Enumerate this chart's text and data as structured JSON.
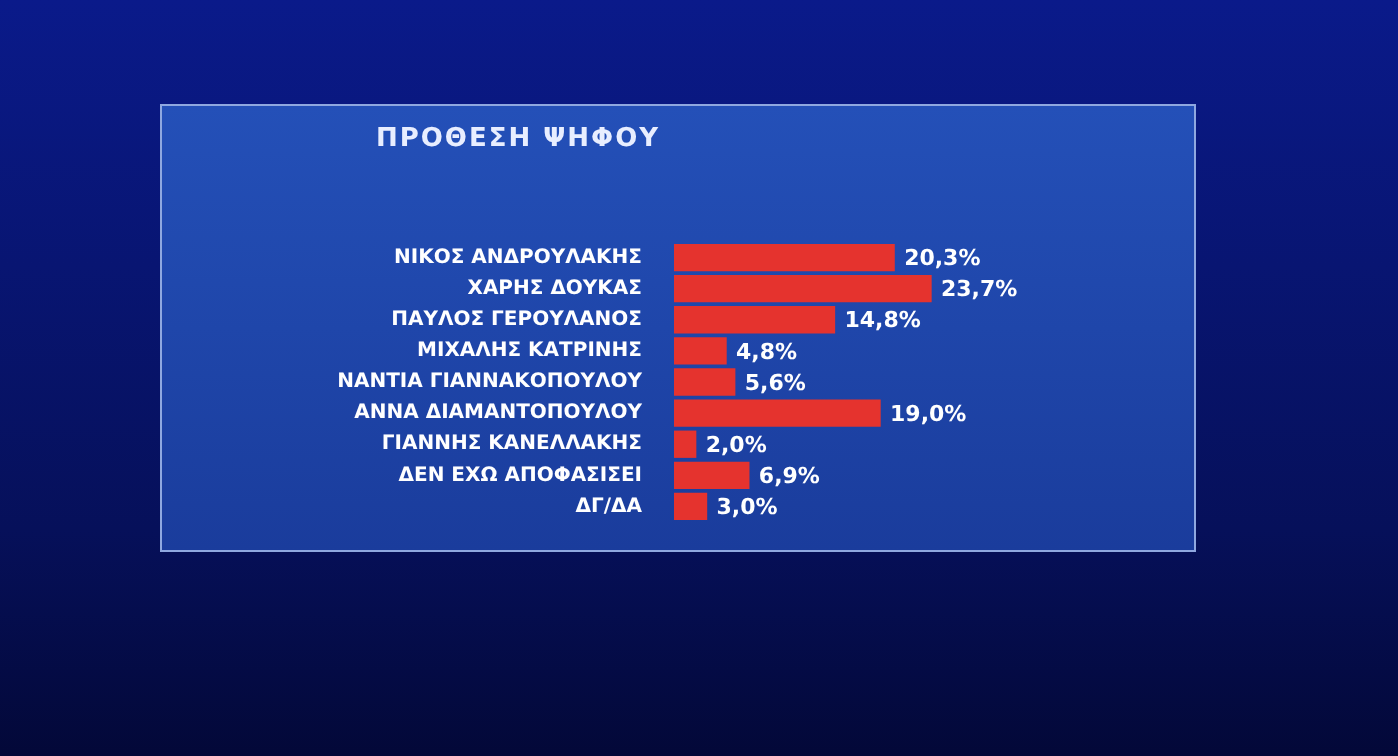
{
  "chart_data": {
    "type": "bar",
    "orientation": "horizontal",
    "title": "ΠΡΟΘΕΣΗ ΨΗΦΟΥ",
    "categories": [
      "ΝΙΚΟΣ ΑΝΔΡΟΥΛΑΚΗΣ",
      "ΧΑΡΗΣ ΔΟΥΚΑΣ",
      "ΠΑΥΛΟΣ ΓΕΡΟΥΛΑΝΟΣ",
      "ΜΙΧΑΛΗΣ ΚΑΤΡΙΝΗΣ",
      "ΝΑΝΤΙΑ ΓΙΑΝΝΑΚΟΠΟΥΛΟΥ",
      "ΑΝΝΑ ΔΙΑΜΑΝΤΟΠΟΥΛΟΥ",
      "ΓΙΑΝΝΗΣ ΚΑΝΕΛΛΑΚΗΣ",
      "ΔΕΝ ΕΧΩ ΑΠΟΦΑΣΙΣΕΙ",
      "ΔΓ/ΔΑ"
    ],
    "values": [
      20.3,
      23.7,
      14.8,
      4.8,
      5.6,
      19.0,
      2.0,
      6.9,
      3.0
    ],
    "value_labels": [
      "20,3%",
      "23,7%",
      "14,8%",
      "4,8%",
      "5,6%",
      "19,0%",
      "2,0%",
      "6,9%",
      "3,0%"
    ],
    "color": "#e5332e",
    "tick_labels": "y",
    "grid": false,
    "legend": false
  }
}
